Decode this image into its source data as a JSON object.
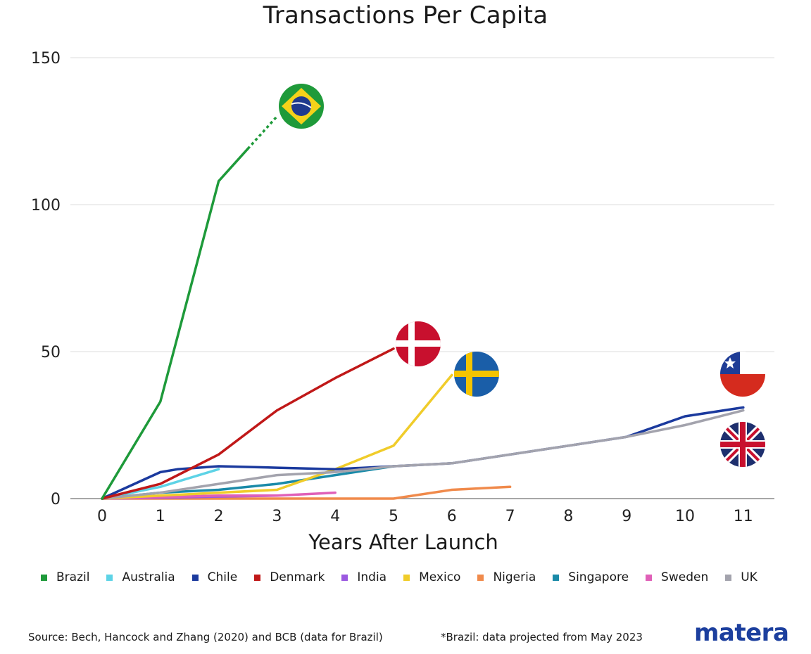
{
  "chart_data": {
    "type": "line",
    "title": "Transactions Per Capita",
    "xlabel": "Years After Launch",
    "ylabel": "",
    "xlim": [
      0,
      11
    ],
    "ylim": [
      0,
      150
    ],
    "x_ticks": [
      0,
      1,
      2,
      3,
      4,
      5,
      6,
      7,
      8,
      9,
      10,
      11
    ],
    "y_ticks": [
      0,
      50,
      100,
      150
    ],
    "grid": "horizontal",
    "legend_position": "bottom",
    "series": [
      {
        "name": "Brazil",
        "color": "#1e9a3a",
        "x": [
          0,
          1,
          2,
          2.5
        ],
        "y": [
          0,
          33,
          108,
          119
        ],
        "projected": {
          "x": [
            2.5,
            3.0
          ],
          "y": [
            119,
            130
          ]
        },
        "flag": "brazil-flag"
      },
      {
        "name": "Australia",
        "color": "#5dd3e6",
        "x": [
          0,
          1,
          2
        ],
        "y": [
          0,
          4,
          10
        ]
      },
      {
        "name": "Chile",
        "color": "#1b3a9e",
        "x": [
          0,
          1,
          1.3,
          2,
          3,
          4,
          5,
          6,
          7,
          8,
          9,
          10,
          11
        ],
        "y": [
          0,
          9,
          10,
          11,
          10.5,
          10,
          11,
          12,
          15,
          18,
          21,
          28,
          31
        ],
        "flag": "chile-flag"
      },
      {
        "name": "Denmark",
        "color": "#c01818",
        "x": [
          0,
          1,
          2,
          3,
          4,
          5
        ],
        "y": [
          0,
          5,
          15,
          30,
          41,
          51
        ],
        "flag": "denmark-flag"
      },
      {
        "name": "India",
        "color": "#9b59e0",
        "x": [
          0,
          1,
          2,
          3
        ],
        "y": [
          0,
          0.3,
          0.7,
          1.0
        ]
      },
      {
        "name": "Mexico",
        "color": "#f0cc2a",
        "x": [
          0,
          1,
          2,
          3,
          4,
          5,
          6
        ],
        "y": [
          0,
          1,
          2,
          3,
          10,
          18,
          42
        ],
        "flag": "sweden-flag"
      },
      {
        "name": "Nigeria",
        "color": "#f08a4b",
        "x": [
          0,
          1,
          2,
          3,
          4,
          5,
          6,
          7
        ],
        "y": [
          0,
          0,
          0,
          0,
          0,
          0,
          3,
          4
        ]
      },
      {
        "name": "Singapore",
        "color": "#1a8aa8",
        "x": [
          0,
          1,
          2,
          3,
          4,
          5
        ],
        "y": [
          0,
          2,
          3,
          5,
          8,
          11
        ]
      },
      {
        "name": "Sweden",
        "color": "#e060b8",
        "x": [
          0,
          1,
          2,
          3,
          4
        ],
        "y": [
          0,
          0.5,
          1,
          1,
          2
        ]
      },
      {
        "name": "UK",
        "color": "#a3a3ad",
        "x": [
          0,
          1,
          2,
          3,
          4,
          5,
          6,
          7,
          8,
          9,
          10,
          11
        ],
        "y": [
          0,
          2,
          5,
          8,
          9,
          11,
          12,
          15,
          18,
          21,
          25,
          30
        ],
        "flag": "uk-flag"
      }
    ]
  },
  "legend": {
    "items": [
      {
        "label": "Brazil",
        "color": "#1e9a3a"
      },
      {
        "label": "Australia",
        "color": "#5dd3e6"
      },
      {
        "label": "Chile",
        "color": "#1b3a9e"
      },
      {
        "label": "Denmark",
        "color": "#c01818"
      },
      {
        "label": "India",
        "color": "#9b59e0"
      },
      {
        "label": "Mexico",
        "color": "#f0cc2a"
      },
      {
        "label": "Nigeria",
        "color": "#f08a4b"
      },
      {
        "label": "Singapore",
        "color": "#1a8aa8"
      },
      {
        "label": "Sweden",
        "color": "#e060b8"
      },
      {
        "label": "UK",
        "color": "#a3a3ad"
      }
    ]
  },
  "footer": {
    "source": "Source: Bech, Hancock and Zhang (2020) and BCB (data for Brazil)",
    "projection_note": "*Brazil: data projected from May 2023",
    "brand": "matera"
  }
}
